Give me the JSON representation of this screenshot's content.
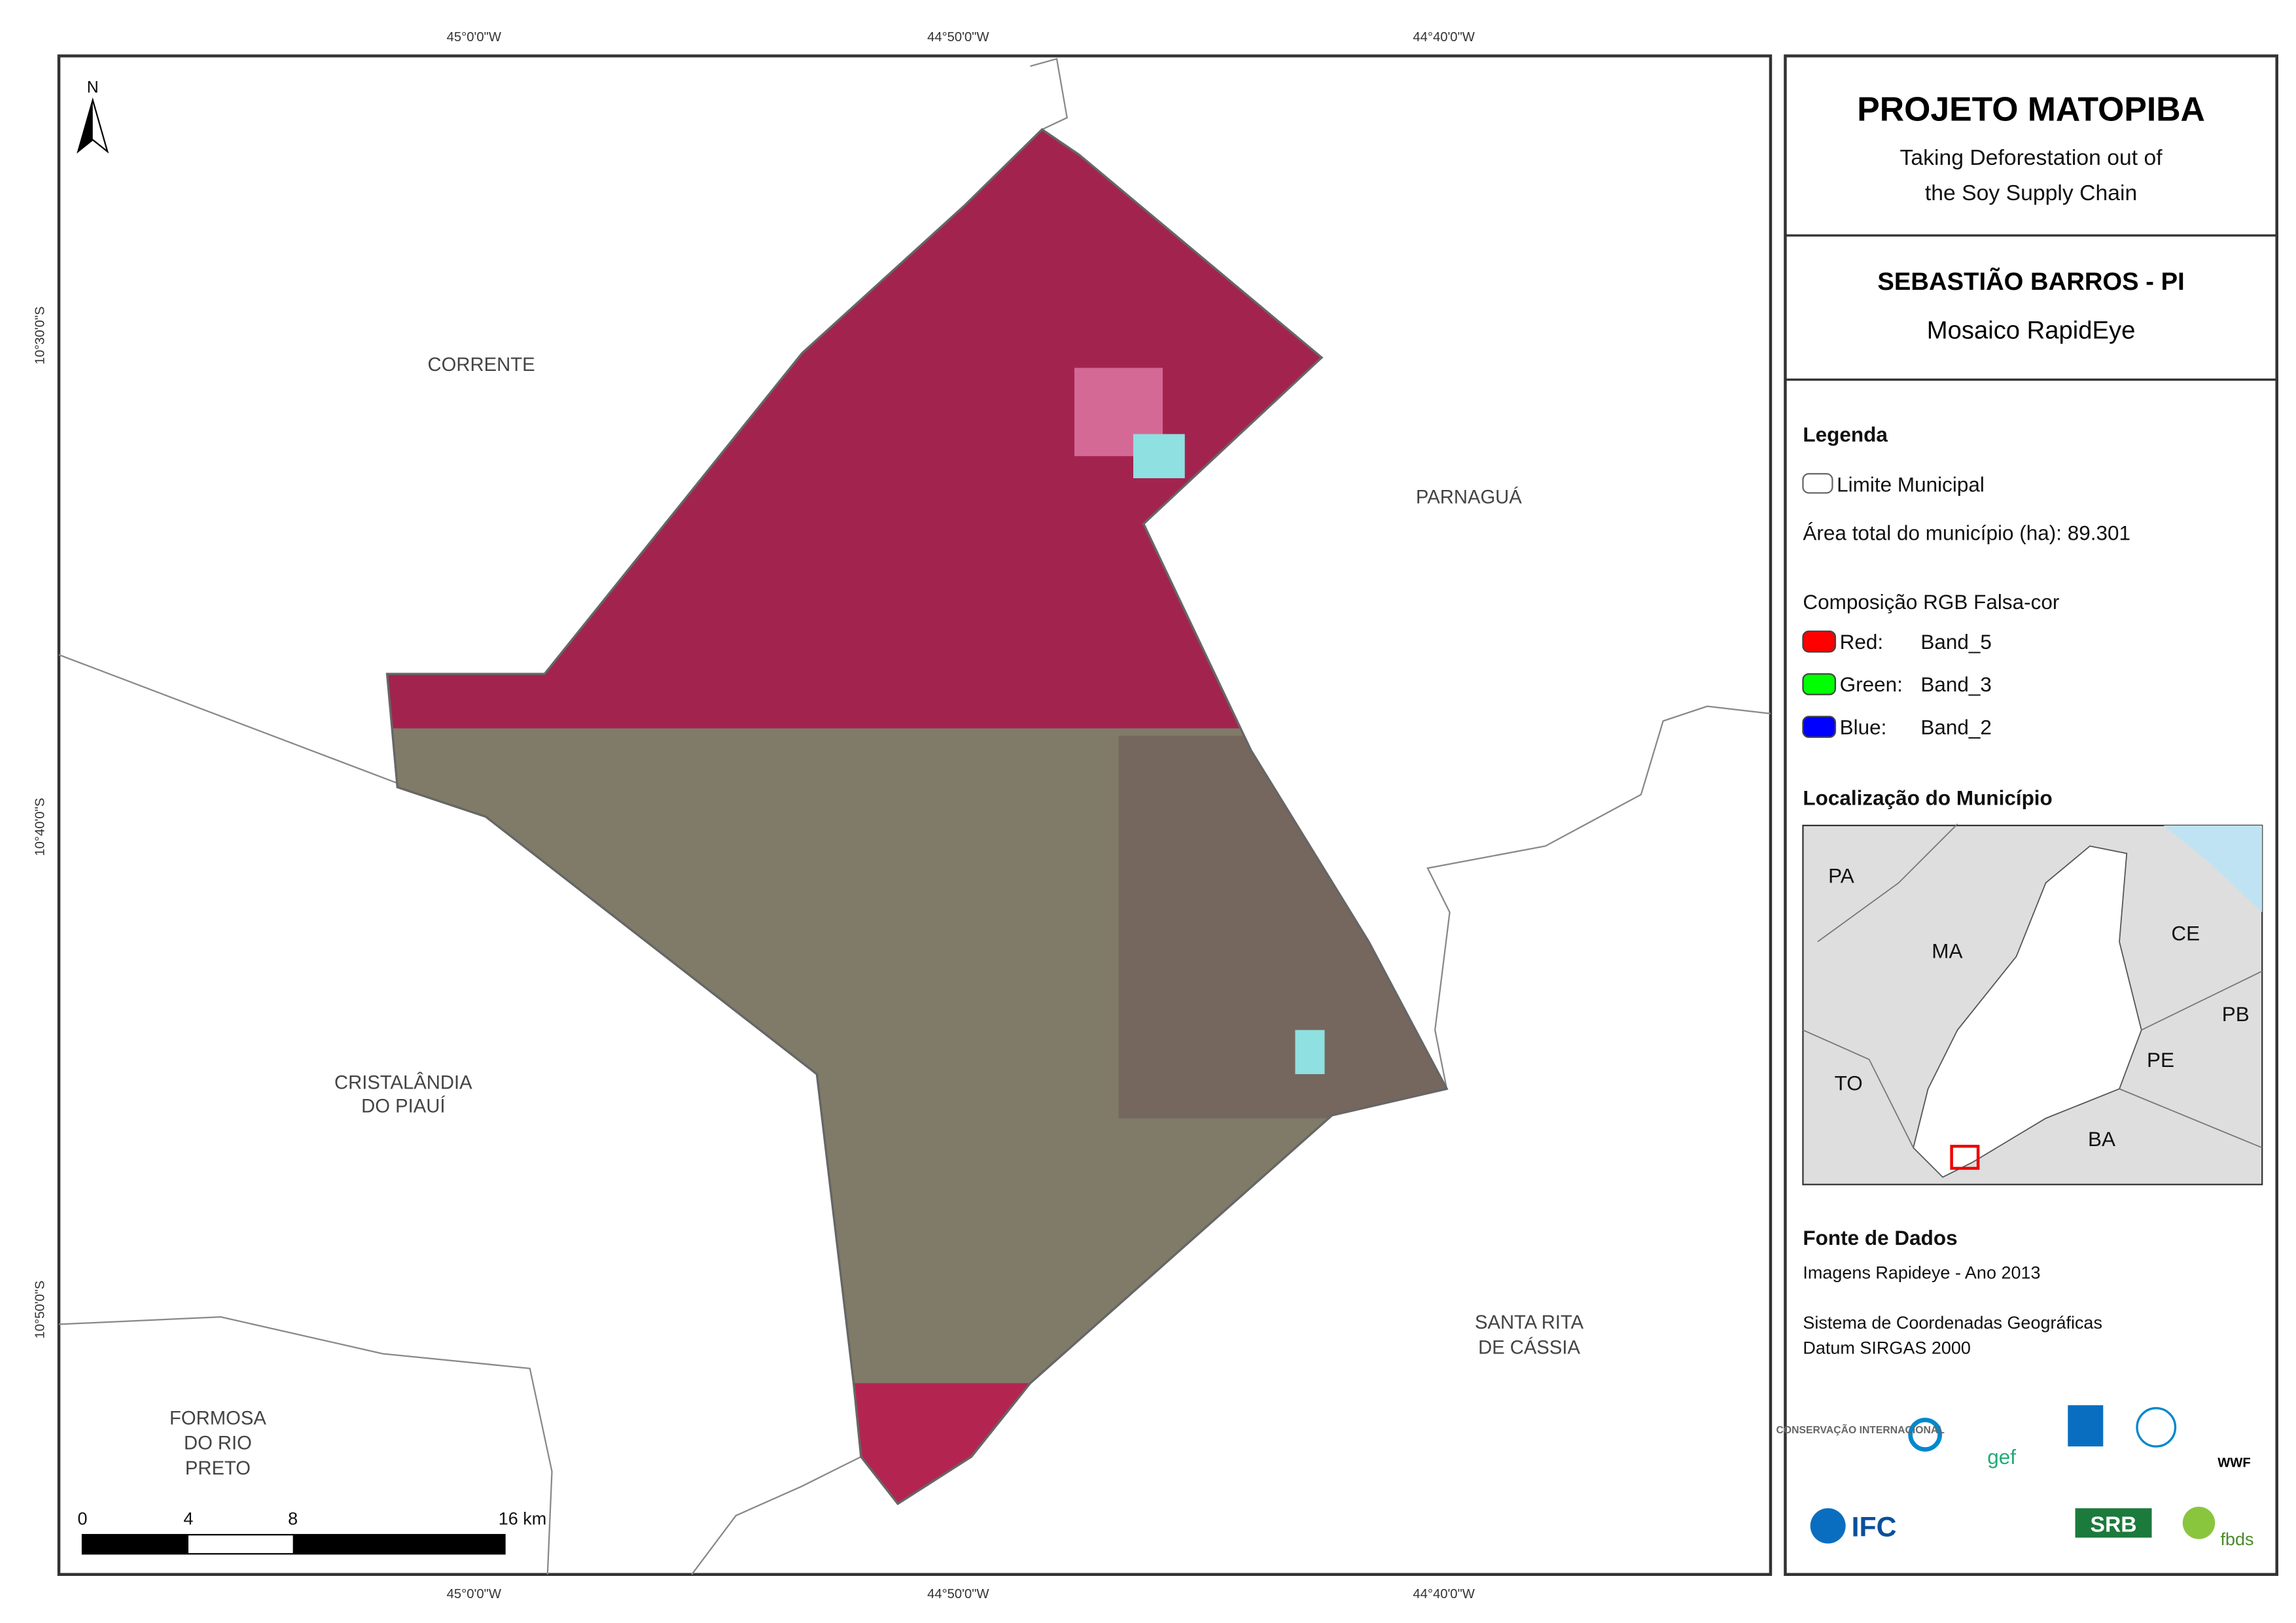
{
  "map": {
    "top_coords": [
      "45°0'0\"W",
      "44°50'0\"W",
      "44°40'0\"W"
    ],
    "bottom_coords": [
      "45°0'0\"W",
      "44°50'0\"W",
      "44°40'0\"W"
    ],
    "left_coords": [
      "10°30'0\"S",
      "10°40'0\"S",
      "10°50'0\"S"
    ],
    "north": "N",
    "places": [
      {
        "lines": [
          "CORRENTE"
        ]
      },
      {
        "lines": [
          "PARNAGUÁ"
        ]
      },
      {
        "lines": [
          "CRISTALÂNDIA",
          "DO PIAUÍ"
        ]
      },
      {
        "lines": [
          "SANTA RITA",
          "DE CÁSSIA"
        ]
      },
      {
        "lines": [
          "FORMOSA",
          "DO RIO",
          "PRETO"
        ]
      }
    ],
    "scale": [
      "0",
      "4",
      "8",
      "16 km"
    ]
  },
  "panel": {
    "title": "PROJETO MATOPIBA",
    "subtitle": [
      "Taking Deforestation out of",
      "the Soy Supply Chain"
    ],
    "municipality": "SEBASTIÃO BARROS - PI",
    "mosaic": "Mosaico RapidEye",
    "legend": {
      "heading": "Legenda",
      "boundary": "Limite Municipal",
      "area": "Área total do município (ha): 89.301",
      "composition": "Composição RGB Falsa-cor",
      "bands": [
        {
          "channel": "Red:",
          "band": "Band_5"
        },
        {
          "channel": "Green:",
          "band": "Band_3"
        },
        {
          "channel": "Blue:",
          "band": "Band_2"
        }
      ]
    },
    "location": {
      "heading": "Localização do Município",
      "states": [
        "PA",
        "MA",
        "CE",
        "PB",
        "TO",
        "PE",
        "BA"
      ]
    },
    "sources": {
      "heading": "Fonte de Dados",
      "lines": [
        "Imagens Rapideye - Ano 2013",
        "Sistema de Coordenadas Geográficas",
        "Datum SIRGAS 2000"
      ]
    },
    "logos": [
      "CONSERVAÇÃO INTERNACIONAL",
      "gef",
      "WWF",
      "IFC",
      "SRB",
      "fbds"
    ]
  }
}
